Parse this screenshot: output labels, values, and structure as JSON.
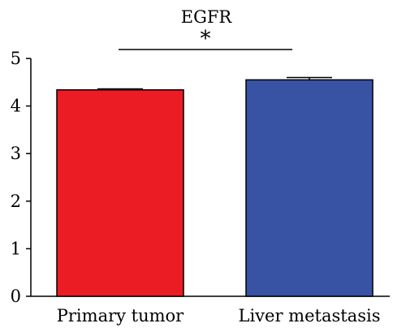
{
  "chart_data": {
    "type": "bar",
    "title": "EGFR",
    "categories": [
      "Primary tumor",
      "Liver metastasis"
    ],
    "values": [
      4.34,
      4.55
    ],
    "error_bars": [
      0.02,
      0.05
    ],
    "colors": [
      "#ec1c24",
      "#3953a4"
    ],
    "ylim": [
      0,
      5
    ],
    "yticks": [
      "0",
      "1",
      "2",
      "3",
      "4",
      "5"
    ],
    "xlabel": "",
    "ylabel": "",
    "grid": false,
    "significance": {
      "pair": [
        0,
        1
      ],
      "label": "*"
    }
  }
}
